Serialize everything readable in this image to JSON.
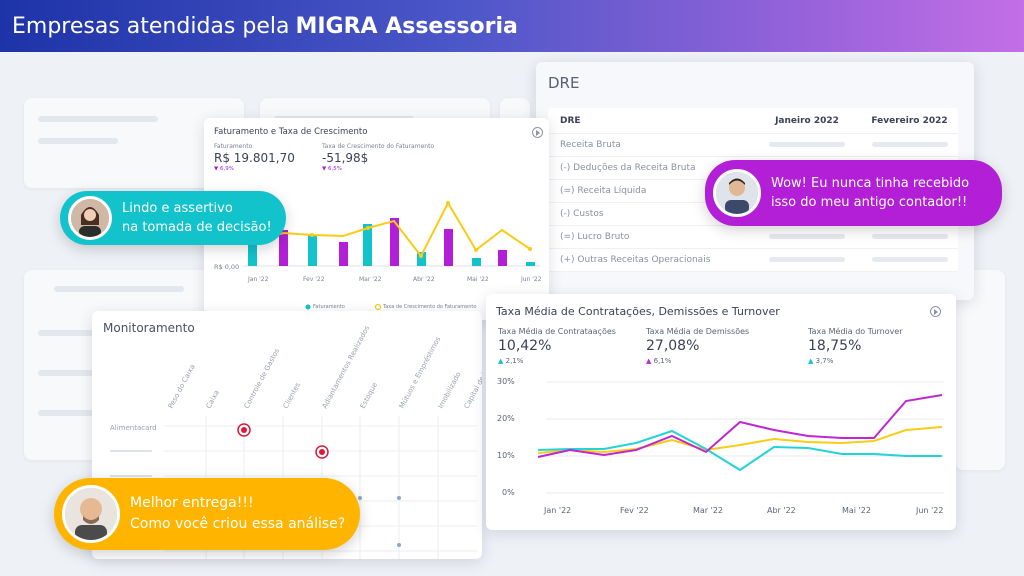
{
  "banner": {
    "title_plain": "Empresas atendidas pela",
    "title_bold": "MIGRA Assessoria"
  },
  "colors": {
    "cyan": "#12c3cc",
    "purple": "#b21fd6",
    "yellow": "#ffb400",
    "magenta_line": "#c026d3",
    "cyan_line": "#22d3d8",
    "yellow_line": "#facc15"
  },
  "dre": {
    "title": "DRE",
    "headers": [
      "DRE",
      "Janeiro 2022",
      "Fevereiro 2022"
    ],
    "rows": [
      "Receita Bruta",
      "(-) Deduções da Receita Bruta",
      "(=) Receita Líquida",
      "(-) Custos",
      "(=) Lucro Bruto",
      "(+) Outras Receitas Operacionais"
    ]
  },
  "faturamento": {
    "title": "Faturamento e Taxa de Crescimento",
    "kpis": [
      {
        "label": "Faturamento",
        "value": "R$ 19.801,70",
        "delta": "6,9%"
      },
      {
        "label": "Taxa de Crescimento do Faturamento",
        "value": "-51,98$",
        "delta": "6,5%"
      }
    ],
    "y_label": "R$ 0,00",
    "legend": [
      "Faturamento",
      "Taxa de Crescimento do Faturamento"
    ],
    "x_labels": [
      "Jan '22",
      "Fev '22",
      "Mar '22",
      "Abr '22",
      "Mai '22",
      "Jun '22"
    ]
  },
  "monitoramento": {
    "title": "Monitoramento",
    "columns": [
      "Peso do Caixa",
      "Caixa",
      "Controle de Gastos",
      "Clientes",
      "Adiantamentos Realizados",
      "Estoque",
      "Mútuos e Empréstimos",
      "Imobilizado",
      "Capital de Terceiros"
    ],
    "row_label": "Alimentacard"
  },
  "turnover": {
    "title": "Taxa Média de Contratações, Demissões e Turnover",
    "kpis": [
      {
        "label": "Taxa Média de Contrataações",
        "value": "10,42%",
        "delta": "2,1%"
      },
      {
        "label": "Taxa Média de Demissões",
        "value": "27,08%",
        "delta": "6,1%"
      },
      {
        "label": "Taxa Média do Turnover",
        "value": "18,75%",
        "delta": "3,7%"
      }
    ],
    "y_ticks": [
      "30%",
      "20%",
      "10%",
      "0%"
    ],
    "x_labels": [
      "Jan '22",
      "Fev '22",
      "Mar '22",
      "Abr '22",
      "Mai '22",
      "Jun '22"
    ]
  },
  "testimonials": [
    {
      "line1": "Lindo e assertivo",
      "line2": "na tomada de decisão!"
    },
    {
      "line1": "Wow! Eu nunca tinha recebido",
      "line2": "isso do meu antigo contador!!"
    },
    {
      "line1": "Melhor entrega!!!",
      "line2": "Como você criou essa análise?"
    }
  ]
}
